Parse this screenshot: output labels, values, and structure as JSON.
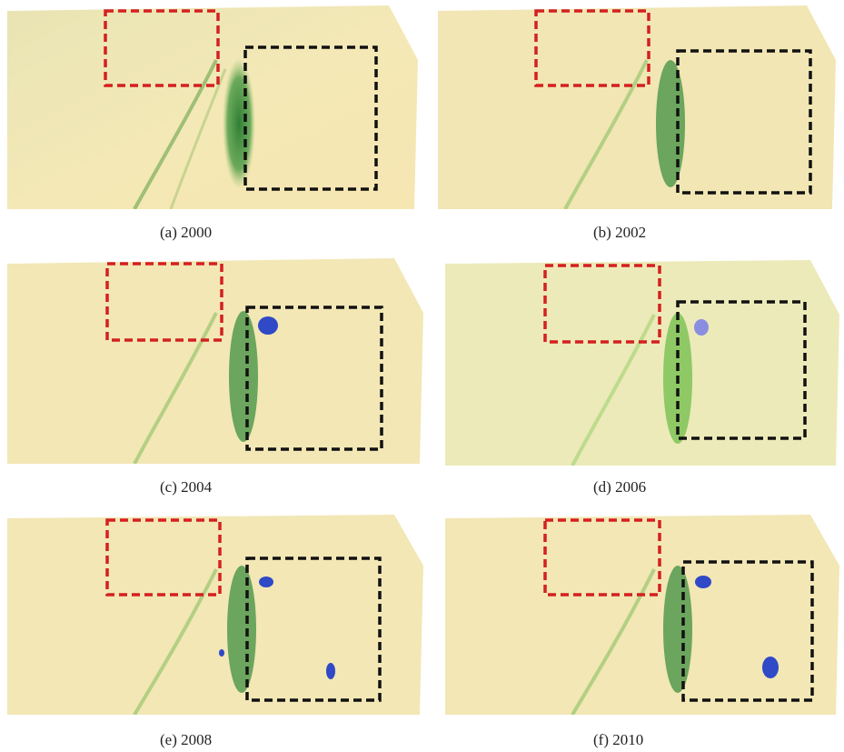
{
  "panels": [
    {
      "caption": "(a)  2000"
    },
    {
      "caption": "(b)  2002"
    },
    {
      "caption": "(c)  2004"
    },
    {
      "caption": "(d)  2006"
    },
    {
      "caption": "(e)  2008"
    },
    {
      "caption": "(f)  2010"
    }
  ],
  "colors": {
    "desert": "#f3e7b5",
    "vegetation": "#2e8b3a",
    "water": "#2f49c7",
    "red_box": "#d42020",
    "black_box": "#111111"
  }
}
